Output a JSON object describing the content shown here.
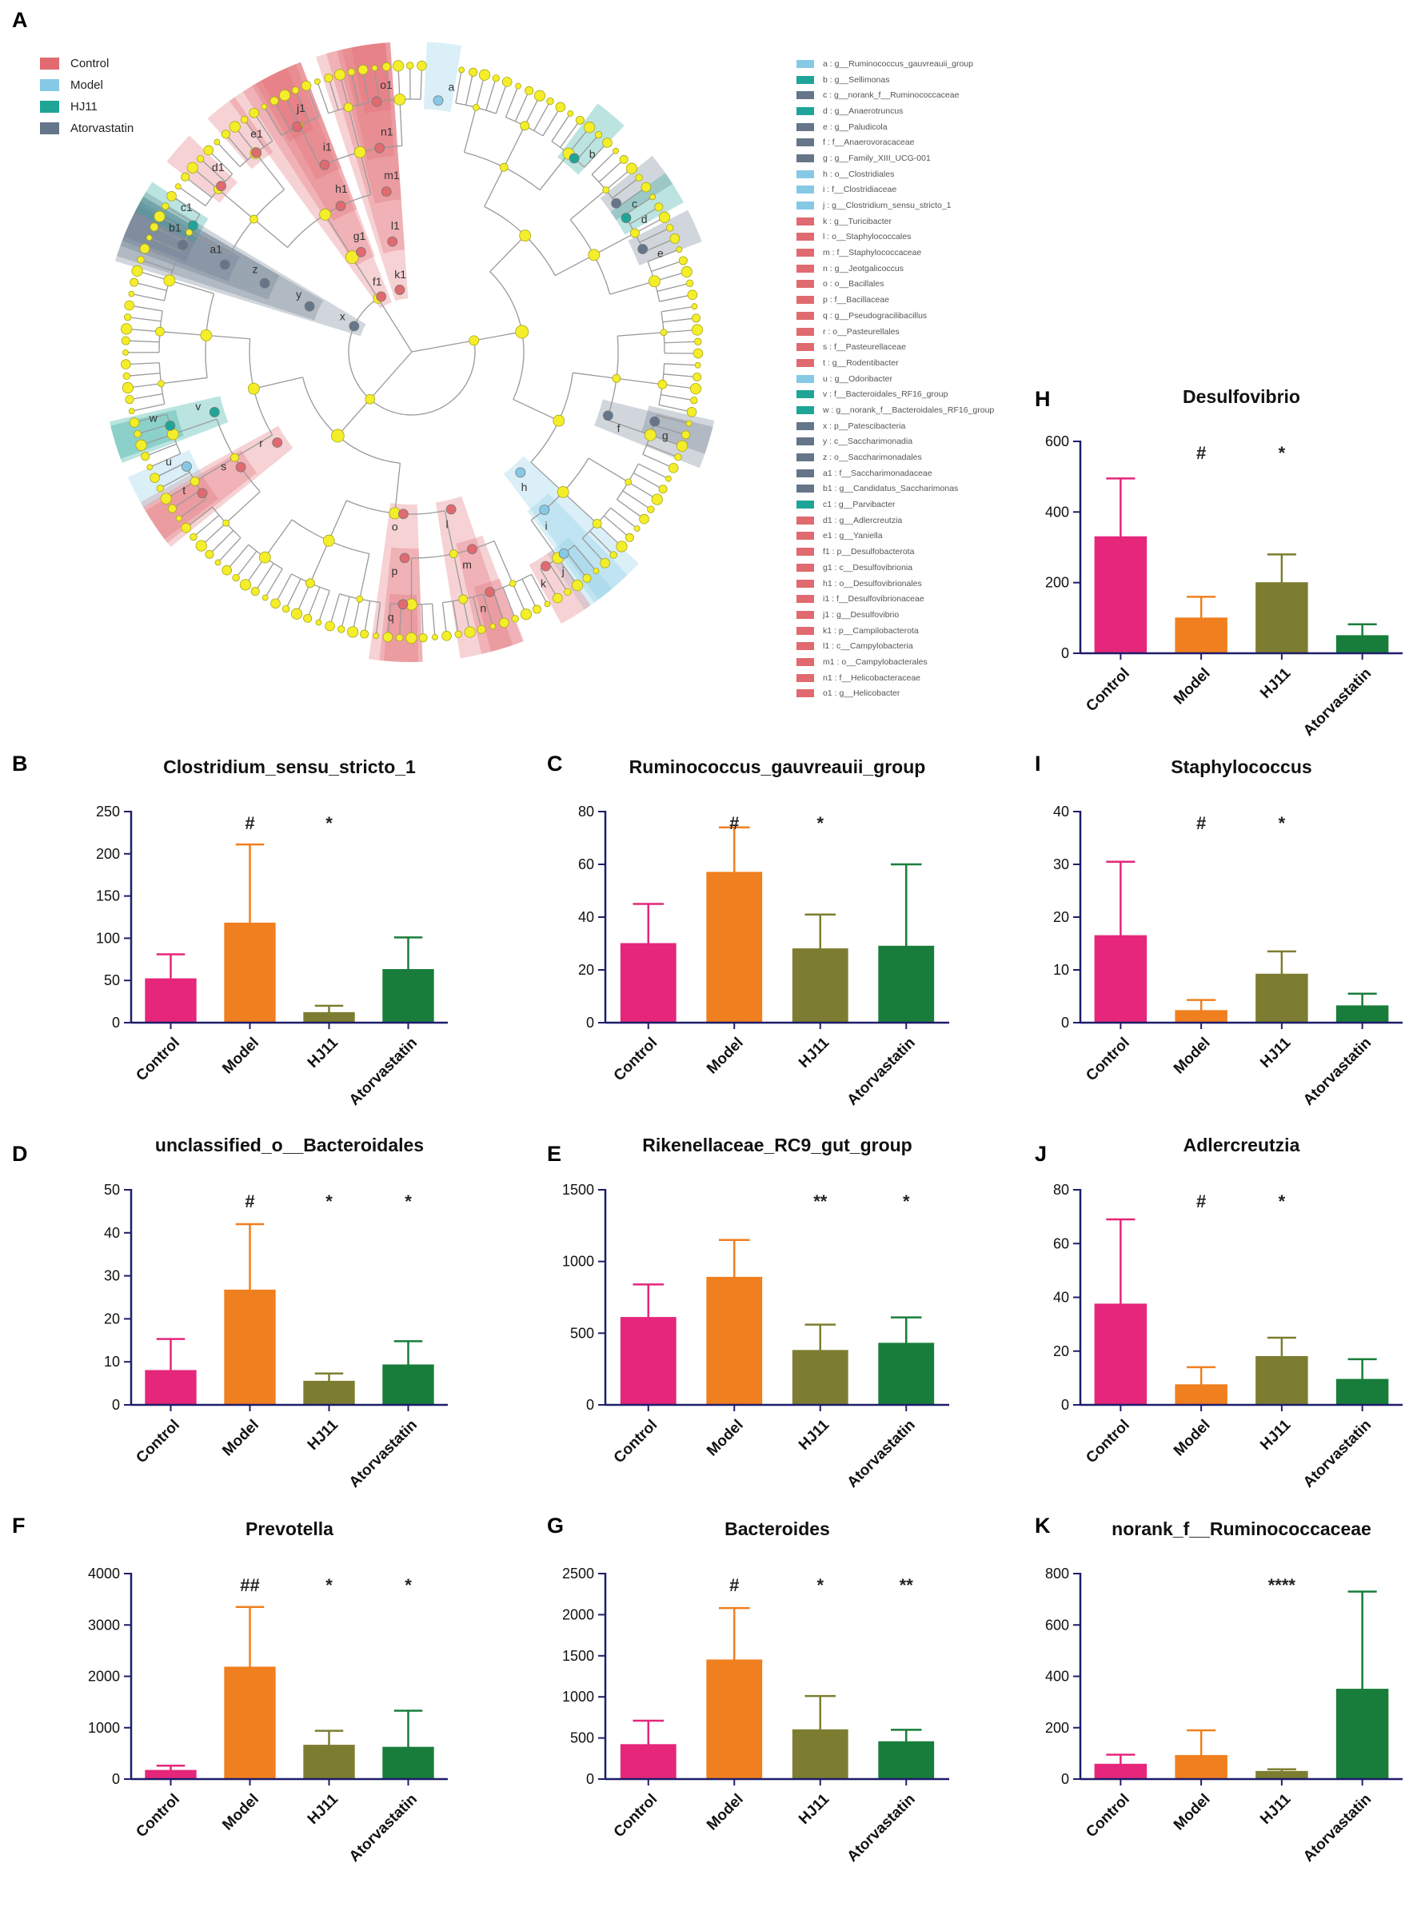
{
  "panel_letters": {
    "A": "A",
    "B": "B",
    "C": "C",
    "D": "D",
    "E": "E",
    "F": "F",
    "G": "G",
    "H": "H",
    "I": "I",
    "J": "J",
    "K": "K"
  },
  "groups": [
    {
      "name": "Control",
      "color": "#e06a6f"
    },
    {
      "name": "Model",
      "color": "#86c9e6"
    },
    {
      "name": "HJ11",
      "color": "#1fa597"
    },
    {
      "name": "Atorvastatin",
      "color": "#66768a"
    }
  ],
  "taxa": [
    {
      "key": "a",
      "taxon": "g__Ruminococcus_gauvreauii_group",
      "group": "Model"
    },
    {
      "key": "b",
      "taxon": "g__Sellimonas",
      "group": "HJ11"
    },
    {
      "key": "c",
      "taxon": "g__norank_f__Ruminococcaceae",
      "group": "Atorvastatin"
    },
    {
      "key": "d",
      "taxon": "g__Anaerotruncus",
      "group": "HJ11"
    },
    {
      "key": "e",
      "taxon": "g__Paludicola",
      "group": "Atorvastatin"
    },
    {
      "key": "f",
      "taxon": "f__Anaerovoracaceae",
      "group": "Atorvastatin"
    },
    {
      "key": "g",
      "taxon": "g__Family_XIII_UCG-001",
      "group": "Atorvastatin"
    },
    {
      "key": "h",
      "taxon": "o__Clostridiales",
      "group": "Model"
    },
    {
      "key": "i",
      "taxon": "f__Clostridiaceae",
      "group": "Model"
    },
    {
      "key": "j",
      "taxon": "g__Clostridium_sensu_stricto_1",
      "group": "Model"
    },
    {
      "key": "k",
      "taxon": "g__Turicibacter",
      "group": "Control"
    },
    {
      "key": "l",
      "taxon": "o__Staphylococcales",
      "group": "Control"
    },
    {
      "key": "m",
      "taxon": "f__Staphylococcaceae",
      "group": "Control"
    },
    {
      "key": "n",
      "taxon": "g__Jeotgalicoccus",
      "group": "Control"
    },
    {
      "key": "o",
      "taxon": "o__Bacillales",
      "group": "Control"
    },
    {
      "key": "p",
      "taxon": "f__Bacillaceae",
      "group": "Control"
    },
    {
      "key": "q",
      "taxon": "g__Pseudogracilibacillus",
      "group": "Control"
    },
    {
      "key": "r",
      "taxon": "o__Pasteurellales",
      "group": "Control"
    },
    {
      "key": "s",
      "taxon": "f__Pasteurellaceae",
      "group": "Control"
    },
    {
      "key": "t",
      "taxon": "g__Rodentibacter",
      "group": "Control"
    },
    {
      "key": "u",
      "taxon": "g__Odoribacter",
      "group": "Model"
    },
    {
      "key": "v",
      "taxon": "f__Bacteroidales_RF16_group",
      "group": "HJ11"
    },
    {
      "key": "w",
      "taxon": "g__norank_f__Bacteroidales_RF16_group",
      "group": "HJ11"
    },
    {
      "key": "x",
      "taxon": "p__Patescibacteria",
      "group": "Atorvastatin"
    },
    {
      "key": "y",
      "taxon": "c__Saccharimonadia",
      "group": "Atorvastatin"
    },
    {
      "key": "z",
      "taxon": "o__Saccharimonadales",
      "group": "Atorvastatin"
    },
    {
      "key": "a1",
      "taxon": "f__Saccharimonadaceae",
      "group": "Atorvastatin"
    },
    {
      "key": "b1",
      "taxon": "g__Candidatus_Saccharimonas",
      "group": "Atorvastatin"
    },
    {
      "key": "c1",
      "taxon": "g__Parvibacter",
      "group": "HJ11"
    },
    {
      "key": "d1",
      "taxon": "g__Adlercreutzia",
      "group": "Control"
    },
    {
      "key": "e1",
      "taxon": "g__Yaniella",
      "group": "Control"
    },
    {
      "key": "f1",
      "taxon": "p__Desulfobacterota",
      "group": "Control"
    },
    {
      "key": "g1",
      "taxon": "c__Desulfovibrionia",
      "group": "Control"
    },
    {
      "key": "h1",
      "taxon": "o__Desulfovibrionales",
      "group": "Control"
    },
    {
      "key": "i1",
      "taxon": "f__Desulfovibrionaceae",
      "group": "Control"
    },
    {
      "key": "j1",
      "taxon": "g__Desulfovibrio",
      "group": "Control"
    },
    {
      "key": "k1",
      "taxon": "p__Campilobacterota",
      "group": "Control"
    },
    {
      "key": "l1",
      "taxon": "c__Campylobacteria",
      "group": "Control"
    },
    {
      "key": "m1",
      "taxon": "o__Campylobacterales",
      "group": "Control"
    },
    {
      "key": "n1",
      "taxon": "f__Helicobacteraceae",
      "group": "Control"
    },
    {
      "key": "o1",
      "taxon": "g__Helicobacter",
      "group": "Control"
    }
  ],
  "chart_data": [
    {
      "panel": "H",
      "type": "bar",
      "title": "Desulfovibrio",
      "categories": [
        "Control",
        "Model",
        "HJ11",
        "Atorvastatin"
      ],
      "values": [
        330,
        100,
        200,
        50
      ],
      "errors": [
        165,
        60,
        80,
        32
      ],
      "ylim": [
        0,
        600
      ],
      "yticks": [
        0,
        200,
        400,
        600
      ],
      "significance": [
        "",
        "#",
        "*",
        ""
      ]
    },
    {
      "panel": "B",
      "type": "bar",
      "title": "Clostridium_sensu_stricto_1",
      "categories": [
        "Control",
        "Model",
        "HJ11",
        "Atorvastatin"
      ],
      "values": [
        52,
        118,
        12,
        63
      ],
      "errors": [
        29,
        93,
        8,
        38
      ],
      "ylim": [
        0,
        250
      ],
      "yticks": [
        0,
        50,
        100,
        150,
        200,
        250
      ],
      "significance": [
        "",
        "#",
        "*",
        ""
      ]
    },
    {
      "panel": "C",
      "type": "bar",
      "title": "Ruminococcus_gauvreauii_group",
      "categories": [
        "Control",
        "Model",
        "HJ11",
        "Atorvastatin"
      ],
      "values": [
        30,
        57,
        28,
        29
      ],
      "errors": [
        15,
        17,
        13,
        31
      ],
      "ylim": [
        0,
        80
      ],
      "yticks": [
        0,
        20,
        40,
        60,
        80
      ],
      "significance": [
        "",
        "#",
        "*",
        ""
      ]
    },
    {
      "panel": "I",
      "type": "bar",
      "title": "Staphylococcus",
      "categories": [
        "Control",
        "Model",
        "HJ11",
        "Atorvastatin"
      ],
      "values": [
        16.5,
        2.3,
        9.2,
        3.2
      ],
      "errors": [
        14,
        2,
        4.3,
        2.3
      ],
      "ylim": [
        0,
        40
      ],
      "yticks": [
        0,
        10,
        20,
        30,
        40
      ],
      "significance": [
        "",
        "#",
        "*",
        ""
      ]
    },
    {
      "panel": "D",
      "type": "bar",
      "title": "unclassified_o__Bacteroidales",
      "categories": [
        "Control",
        "Model",
        "HJ11",
        "Atorvastatin"
      ],
      "values": [
        8,
        26.7,
        5.5,
        9.3
      ],
      "errors": [
        7.3,
        15.3,
        1.8,
        5.5
      ],
      "ylim": [
        0,
        50
      ],
      "yticks": [
        0,
        10,
        20,
        30,
        40,
        50
      ],
      "significance": [
        "",
        "#",
        "*",
        "*"
      ]
    },
    {
      "panel": "E",
      "type": "bar",
      "title": "Rikenellaceae_RC9_gut_group",
      "categories": [
        "Control",
        "Model",
        "HJ11",
        "Atorvastatin"
      ],
      "values": [
        610,
        890,
        380,
        430
      ],
      "errors": [
        230,
        260,
        180,
        180
      ],
      "ylim": [
        0,
        1500
      ],
      "yticks": [
        0,
        500,
        1000,
        1500
      ],
      "significance": [
        "",
        "",
        "**",
        "*"
      ]
    },
    {
      "panel": "J",
      "type": "bar",
      "title": "Adlercreutzia",
      "categories": [
        "Control",
        "Model",
        "HJ11",
        "Atorvastatin"
      ],
      "values": [
        37.5,
        7.5,
        18,
        9.5
      ],
      "errors": [
        31.5,
        6.5,
        7,
        7.5
      ],
      "ylim": [
        0,
        80
      ],
      "yticks": [
        0,
        20,
        40,
        60,
        80
      ],
      "significance": [
        "",
        "#",
        "*",
        ""
      ]
    },
    {
      "panel": "F",
      "type": "bar",
      "title": "Prevotella",
      "categories": [
        "Control",
        "Model",
        "HJ11",
        "Atorvastatin"
      ],
      "values": [
        170,
        2180,
        660,
        620
      ],
      "errors": [
        90,
        1170,
        280,
        710
      ],
      "ylim": [
        0,
        4000
      ],
      "yticks": [
        0,
        1000,
        2000,
        3000,
        4000
      ],
      "significance": [
        "",
        "##",
        "*",
        "*"
      ]
    },
    {
      "panel": "G",
      "type": "bar",
      "title": "Bacteroides",
      "categories": [
        "Control",
        "Model",
        "HJ11",
        "Atorvastatin"
      ],
      "values": [
        420,
        1450,
        600,
        455
      ],
      "errors": [
        290,
        630,
        410,
        145
      ],
      "ylim": [
        0,
        2500
      ],
      "yticks": [
        0,
        500,
        1000,
        1500,
        2000,
        2500
      ],
      "significance": [
        "",
        "#",
        "*",
        "**"
      ]
    },
    {
      "panel": "K",
      "type": "bar",
      "title": "norank_f__Ruminococcaceae",
      "categories": [
        "Control",
        "Model",
        "HJ11",
        "Atorvastatin"
      ],
      "values": [
        58,
        92,
        30,
        350
      ],
      "errors": [
        37,
        98,
        8,
        380
      ],
      "ylim": [
        0,
        800
      ],
      "yticks": [
        0,
        200,
        400,
        600,
        800
      ],
      "significance": [
        "",
        "",
        "****",
        ""
      ]
    }
  ],
  "bar_colors": [
    "#e5267a",
    "#f07f1f",
    "#7d7d31",
    "#187d3a"
  ],
  "axis_color": "#1d1d6b"
}
